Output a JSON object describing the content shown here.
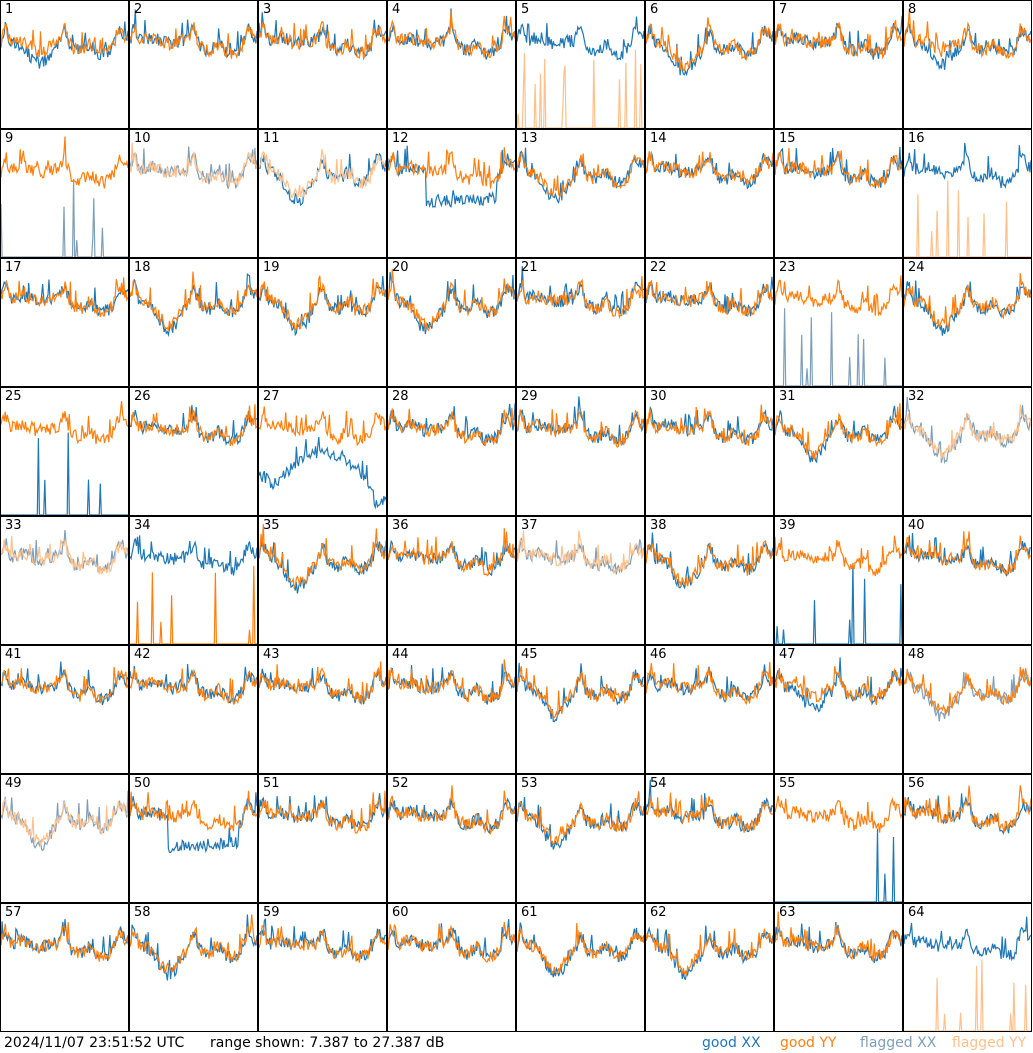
{
  "chart_data": {
    "type": "line",
    "panels": [
      {
        "id": "1",
        "status": [
          "good",
          "good"
        ],
        "shape": "flatdip"
      },
      {
        "id": "2",
        "status": [
          "good",
          "good"
        ],
        "shape": "normal"
      },
      {
        "id": "3",
        "status": [
          "good",
          "good"
        ],
        "shape": "normal"
      },
      {
        "id": "4",
        "status": [
          "good",
          "good"
        ],
        "shape": "normal"
      },
      {
        "id": "5",
        "status": [
          "good",
          "flagged"
        ],
        "shape": "yyspikes"
      },
      {
        "id": "6",
        "status": [
          "good",
          "good"
        ],
        "shape": "deepdip"
      },
      {
        "id": "7",
        "status": [
          "good",
          "good"
        ],
        "shape": "normal"
      },
      {
        "id": "8",
        "status": [
          "good",
          "good"
        ],
        "shape": "flatdip"
      },
      {
        "id": "9",
        "status": [
          "flagged",
          "good"
        ],
        "shape": "xxspikes"
      },
      {
        "id": "10",
        "status": [
          "flagged",
          "flagged"
        ],
        "shape": "normal"
      },
      {
        "id": "11",
        "status": [
          "good",
          "flagged"
        ],
        "shape": "deepdip"
      },
      {
        "id": "12",
        "status": [
          "good",
          "good"
        ],
        "shape": "flat"
      },
      {
        "id": "13",
        "status": [
          "good",
          "good"
        ],
        "shape": "deepdip"
      },
      {
        "id": "14",
        "status": [
          "good",
          "good"
        ],
        "shape": "normal"
      },
      {
        "id": "15",
        "status": [
          "good",
          "good"
        ],
        "shape": "normal"
      },
      {
        "id": "16",
        "status": [
          "good",
          "flagged"
        ],
        "shape": "yyspikes"
      },
      {
        "id": "17",
        "status": [
          "good",
          "good"
        ],
        "shape": "normal"
      },
      {
        "id": "18",
        "status": [
          "good",
          "good"
        ],
        "shape": "deepdip"
      },
      {
        "id": "19",
        "status": [
          "good",
          "good"
        ],
        "shape": "deepdip"
      },
      {
        "id": "20",
        "status": [
          "good",
          "good"
        ],
        "shape": "deepdip"
      },
      {
        "id": "21",
        "status": [
          "good",
          "good"
        ],
        "shape": "normal"
      },
      {
        "id": "22",
        "status": [
          "good",
          "good"
        ],
        "shape": "normal"
      },
      {
        "id": "23",
        "status": [
          "flagged",
          "good"
        ],
        "shape": "xxspikes"
      },
      {
        "id": "24",
        "status": [
          "good",
          "good"
        ],
        "shape": "deepdip"
      },
      {
        "id": "25",
        "status": [
          "good",
          "good"
        ],
        "shape": "xxspikes"
      },
      {
        "id": "26",
        "status": [
          "good",
          "good"
        ],
        "shape": "normal"
      },
      {
        "id": "27",
        "status": [
          "good",
          "good"
        ],
        "shape": "arc"
      },
      {
        "id": "28",
        "status": [
          "good",
          "good"
        ],
        "shape": "normal"
      },
      {
        "id": "29",
        "status": [
          "good",
          "good"
        ],
        "shape": "normal"
      },
      {
        "id": "30",
        "status": [
          "good",
          "good"
        ],
        "shape": "normal"
      },
      {
        "id": "31",
        "status": [
          "good",
          "good"
        ],
        "shape": "deepdip"
      },
      {
        "id": "32",
        "status": [
          "flagged",
          "flagged"
        ],
        "shape": "deepdip"
      },
      {
        "id": "33",
        "status": [
          "flagged",
          "flagged"
        ],
        "shape": "normal"
      },
      {
        "id": "34",
        "status": [
          "good",
          "good"
        ],
        "shape": "yyspikes"
      },
      {
        "id": "35",
        "status": [
          "good",
          "good"
        ],
        "shape": "deepdip"
      },
      {
        "id": "36",
        "status": [
          "good",
          "good"
        ],
        "shape": "normal"
      },
      {
        "id": "37",
        "status": [
          "flagged",
          "flagged"
        ],
        "shape": "normal"
      },
      {
        "id": "38",
        "status": [
          "good",
          "good"
        ],
        "shape": "deepdip"
      },
      {
        "id": "39",
        "status": [
          "good",
          "good"
        ],
        "shape": "xxspikes"
      },
      {
        "id": "40",
        "status": [
          "good",
          "good"
        ],
        "shape": "normal"
      },
      {
        "id": "41",
        "status": [
          "good",
          "good"
        ],
        "shape": "normal"
      },
      {
        "id": "42",
        "status": [
          "good",
          "good"
        ],
        "shape": "normal"
      },
      {
        "id": "43",
        "status": [
          "good",
          "good"
        ],
        "shape": "normal"
      },
      {
        "id": "44",
        "status": [
          "good",
          "good"
        ],
        "shape": "normal"
      },
      {
        "id": "45",
        "status": [
          "good",
          "good"
        ],
        "shape": "deepdip"
      },
      {
        "id": "46",
        "status": [
          "good",
          "good"
        ],
        "shape": "normal"
      },
      {
        "id": "47",
        "status": [
          "good",
          "good"
        ],
        "shape": "flatdip"
      },
      {
        "id": "48",
        "status": [
          "flagged",
          "good"
        ],
        "shape": "deepdip"
      },
      {
        "id": "49",
        "status": [
          "flagged",
          "flagged"
        ],
        "shape": "deepdip"
      },
      {
        "id": "50",
        "status": [
          "good",
          "good"
        ],
        "shape": "flat"
      },
      {
        "id": "51",
        "status": [
          "good",
          "good"
        ],
        "shape": "normal"
      },
      {
        "id": "52",
        "status": [
          "good",
          "good"
        ],
        "shape": "normal"
      },
      {
        "id": "53",
        "status": [
          "good",
          "good"
        ],
        "shape": "deepdip"
      },
      {
        "id": "54",
        "status": [
          "good",
          "good"
        ],
        "shape": "normal"
      },
      {
        "id": "55",
        "status": [
          "good",
          "good"
        ],
        "shape": "xxspikes"
      },
      {
        "id": "56",
        "status": [
          "good",
          "good"
        ],
        "shape": "normal"
      },
      {
        "id": "57",
        "status": [
          "good",
          "good"
        ],
        "shape": "normal"
      },
      {
        "id": "58",
        "status": [
          "good",
          "good"
        ],
        "shape": "deepdip"
      },
      {
        "id": "59",
        "status": [
          "good",
          "good"
        ],
        "shape": "normal"
      },
      {
        "id": "60",
        "status": [
          "good",
          "good"
        ],
        "shape": "normal"
      },
      {
        "id": "61",
        "status": [
          "good",
          "good"
        ],
        "shape": "deepdip"
      },
      {
        "id": "62",
        "status": [
          "good",
          "good"
        ],
        "shape": "deepdip"
      },
      {
        "id": "63",
        "status": [
          "good",
          "good"
        ],
        "shape": "normal"
      },
      {
        "id": "64",
        "status": [
          "good",
          "flagged"
        ],
        "shape": "yyspikes"
      }
    ],
    "range_db": [
      7.387,
      27.387
    ]
  },
  "footer": {
    "timestamp": "2024/11/07 23:51:52 UTC",
    "range_text": "range shown: 7.387 to 27.387 dB"
  },
  "legend": [
    {
      "label": "good XX",
      "color": "#1f77b4"
    },
    {
      "label": "good YY",
      "color": "#ff7f0e"
    },
    {
      "label": "flagged XX",
      "color": "#7f9fb8"
    },
    {
      "label": "flagged YY",
      "color": "#ffc08c"
    }
  ]
}
